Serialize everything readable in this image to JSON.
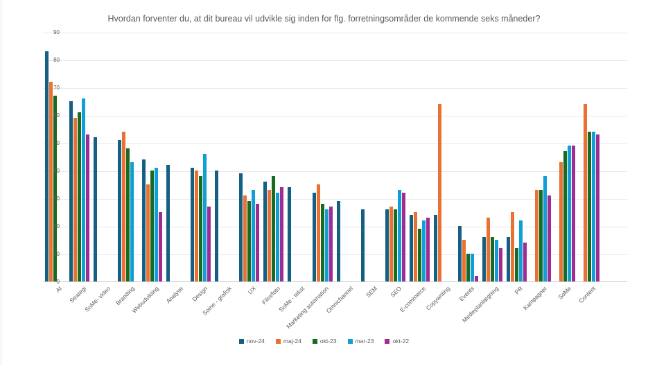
{
  "page": {
    "background": "#ffffff"
  },
  "chart_data": {
    "type": "bar",
    "title": "Hvordan forventer du, at dit bureau vil udvikle sig inden for flg. forretningsområder de kommende seks måneder?",
    "categories": [
      "AI",
      "Strategi",
      "SoMe- video",
      "Branding",
      "Webudvikling",
      "Analyse",
      "Design",
      "Some - grafisk",
      "UX",
      "Film/foto",
      "SoMe - tekst",
      "Marketing automation",
      "Omnichannel",
      "SEM",
      "SEO",
      "E-commerce",
      "Copywriting",
      "Events",
      "Medieplanlægning",
      "PR",
      "Kampagner",
      "SoMe",
      "Content"
    ],
    "series": [
      {
        "name": "nov-24",
        "color": "#156082",
        "values": [
          83,
          65,
          52,
          51,
          44,
          42,
          41,
          40,
          39,
          36,
          34,
          32,
          29,
          26,
          26,
          24,
          24,
          20,
          16,
          16,
          null,
          null,
          null
        ]
      },
      {
        "name": "maj-24",
        "color": "#E97132",
        "values": [
          72,
          59,
          null,
          54,
          35,
          null,
          40,
          null,
          31,
          33,
          null,
          35,
          null,
          null,
          27,
          25,
          64,
          15,
          23,
          25,
          33,
          43,
          64
        ]
      },
      {
        "name": "okt-23",
        "color": "#196B24",
        "values": [
          67,
          61,
          null,
          48,
          40,
          null,
          38,
          null,
          29,
          38,
          null,
          28,
          null,
          null,
          26,
          19,
          null,
          10,
          16,
          12,
          33,
          47,
          54
        ]
      },
      {
        "name": "mar-23",
        "color": "#0F9ED5",
        "values": [
          null,
          66,
          null,
          43,
          41,
          null,
          46,
          null,
          33,
          32,
          null,
          26,
          null,
          null,
          33,
          22,
          null,
          10,
          15,
          22,
          38,
          49,
          54
        ]
      },
      {
        "name": "okt-22",
        "color": "#A02B93",
        "values": [
          null,
          53,
          null,
          null,
          25,
          null,
          27,
          null,
          28,
          34,
          null,
          27,
          null,
          null,
          32,
          23,
          null,
          2,
          12,
          14,
          31,
          49,
          53
        ]
      }
    ],
    "ylim": [
      0,
      90
    ],
    "yticks": [
      0,
      10,
      20,
      30,
      40,
      50,
      60,
      70,
      80,
      90
    ],
    "grid": "horizontal",
    "legend_position": "bottom",
    "gridline_color": "#e8e8e8",
    "axis_text_color": "#595959"
  }
}
